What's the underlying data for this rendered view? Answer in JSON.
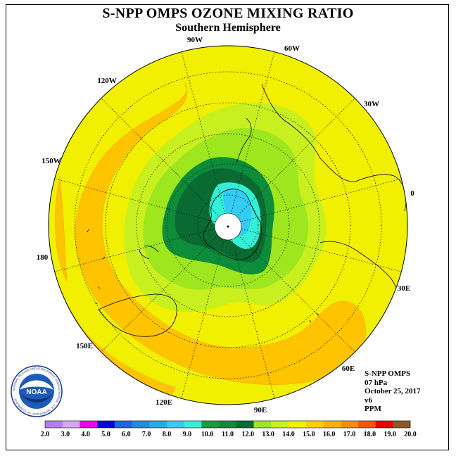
{
  "title": "S-NPP OMPS OZONE MIXING RATIO",
  "subtitle": "Southern Hemisphere",
  "longitude_labels": [
    "90W",
    "60W",
    "30W",
    "0",
    "30E",
    "60E",
    "90E",
    "120E",
    "150E",
    "180",
    "150W",
    "120W"
  ],
  "info": {
    "line1": "S-NPP OMPS",
    "line2": "07 hPa",
    "line3": "October 25, 2017",
    "line4": "v6",
    "line5": "PPM"
  },
  "logo": {
    "text": "NOAA",
    "ring_text": "NATIONAL OCEANIC AND ATMOSPHERIC ADMINISTRATION · U.S. DEPARTMENT OF COMMERCE"
  },
  "colorbar": {
    "ticks": [
      "2.0",
      "3.0",
      "4.0",
      "5.0",
      "6.0",
      "7.0",
      "8.0",
      "9.0",
      "10.0",
      "11.0",
      "12.0",
      "13.0",
      "14.0",
      "15.0",
      "16.0",
      "17.0",
      "18.0",
      "19.0",
      "20.0"
    ],
    "colors": [
      "#b27fe8",
      "#d4a8f0",
      "#ee00ee",
      "#0000dd",
      "#1a66e6",
      "#1e8de6",
      "#20aaf0",
      "#33ccf5",
      "#33f0d8",
      "#13a03c",
      "#0d8c3a",
      "#0a6b32",
      "#9ee61e",
      "#c8f01e",
      "#f0f000",
      "#ffd000",
      "#ffb000",
      "#ff8c00",
      "#ff5500",
      "#ee0000",
      "#8b5a2b"
    ]
  },
  "map": {
    "levels_ppm": {
      "outer_background": "15.0-16.0",
      "orange_band": "16.0-17.0",
      "vortex_edge": "13.0-15.0",
      "vortex_interior": "11.0-13.0",
      "vortex_core": "8.0-10.0"
    }
  }
}
